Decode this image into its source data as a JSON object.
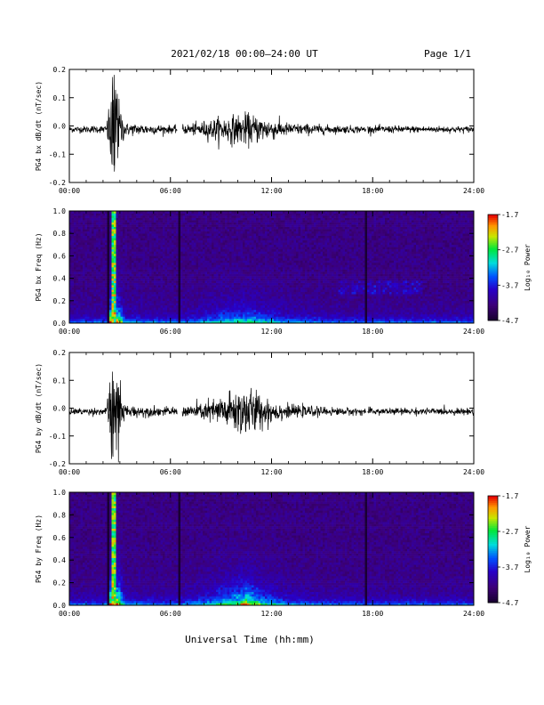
{
  "header": {
    "title": "2021/02/18  00:00–24:00 UT",
    "page": "Page 1/1"
  },
  "colors": {
    "trace": "#000000",
    "background": "#ffffff"
  },
  "chart_data": [
    {
      "type": "line",
      "panel": "bx-dbdt",
      "ylabel": "PG4 bx dB/dt (nT/sec)",
      "xlim": [
        0,
        24
      ],
      "ylim": [
        -0.2,
        0.2
      ],
      "xticks": [
        "00:00",
        "06:00",
        "12:00",
        "18:00",
        "24:00"
      ],
      "yticks": [
        "-0.2",
        "-0.1",
        "0.0",
        "0.1",
        "0.2"
      ],
      "envelope": [
        {
          "t": 0,
          "amp": 0.01
        },
        {
          "t": 2.2,
          "amp": 0.012
        },
        {
          "t": 2.6,
          "amp": 0.2
        },
        {
          "t": 2.9,
          "amp": 0.1
        },
        {
          "t": 3.3,
          "amp": 0.02
        },
        {
          "t": 6.3,
          "amp": 0.012
        },
        {
          "t": 7.5,
          "amp": 0.02
        },
        {
          "t": 9.0,
          "amp": 0.04
        },
        {
          "t": 10.5,
          "amp": 0.05
        },
        {
          "t": 11.5,
          "amp": 0.04
        },
        {
          "t": 13.0,
          "amp": 0.02
        },
        {
          "t": 16.0,
          "amp": 0.012
        },
        {
          "t": 24,
          "amp": 0.01
        }
      ],
      "gaps": [
        [
          6.4,
          6.7
        ],
        [
          17.6,
          17.7
        ]
      ]
    },
    {
      "type": "heatmap",
      "panel": "bx-spectrogram",
      "ylabel": "PG4 bx Freq (Hz)",
      "xlim": [
        0,
        24
      ],
      "ylim": [
        0,
        1.0
      ],
      "xticks": [
        "00:00",
        "06:00",
        "12:00",
        "18:00",
        "24:00"
      ],
      "yticks": [
        "0.0",
        "0.2",
        "0.4",
        "0.6",
        "0.8",
        "1.0"
      ],
      "colorbar": {
        "label": "Log₁₀ Power",
        "ticks": [
          "-1.7",
          "-2.7",
          "-3.7",
          "-4.7"
        ],
        "range": [
          -4.7,
          -1.7
        ]
      }
    },
    {
      "type": "line",
      "panel": "by-dbdt",
      "ylabel": "PG4 by dB/dt (nT/sec)",
      "xlim": [
        0,
        24
      ],
      "ylim": [
        -0.2,
        0.2
      ],
      "xticks": [
        "00:00",
        "06:00",
        "12:00",
        "18:00",
        "24:00"
      ],
      "yticks": [
        "-0.2",
        "-0.1",
        "0.0",
        "0.1",
        "0.2"
      ],
      "envelope": [
        {
          "t": 0,
          "amp": 0.01
        },
        {
          "t": 2.2,
          "amp": 0.012
        },
        {
          "t": 2.6,
          "amp": 0.2
        },
        {
          "t": 2.9,
          "amp": 0.12
        },
        {
          "t": 3.3,
          "amp": 0.02
        },
        {
          "t": 6.3,
          "amp": 0.012
        },
        {
          "t": 8.0,
          "amp": 0.03
        },
        {
          "t": 9.5,
          "amp": 0.06
        },
        {
          "t": 10.5,
          "amp": 0.09
        },
        {
          "t": 11.5,
          "amp": 0.05
        },
        {
          "t": 13.0,
          "amp": 0.02
        },
        {
          "t": 16.0,
          "amp": 0.012
        },
        {
          "t": 24,
          "amp": 0.01
        }
      ],
      "gaps": [
        [
          6.4,
          6.7
        ],
        [
          17.6,
          17.7
        ]
      ]
    },
    {
      "type": "heatmap",
      "panel": "by-spectrogram",
      "ylabel": "PG4 by Freq (Hz)",
      "xlim": [
        0,
        24
      ],
      "ylim": [
        0,
        1.0
      ],
      "xticks": [
        "00:00",
        "06:00",
        "12:00",
        "18:00",
        "24:00"
      ],
      "yticks": [
        "0.0",
        "0.2",
        "0.4",
        "0.6",
        "0.8",
        "1.0"
      ],
      "colorbar": {
        "label": "Log₁₀ Power",
        "ticks": [
          "-1.7",
          "-2.7",
          "-3.7",
          "-4.7"
        ],
        "range": [
          -4.7,
          -1.7
        ]
      }
    }
  ],
  "xlabel": "Universal Time (hh:mm)"
}
